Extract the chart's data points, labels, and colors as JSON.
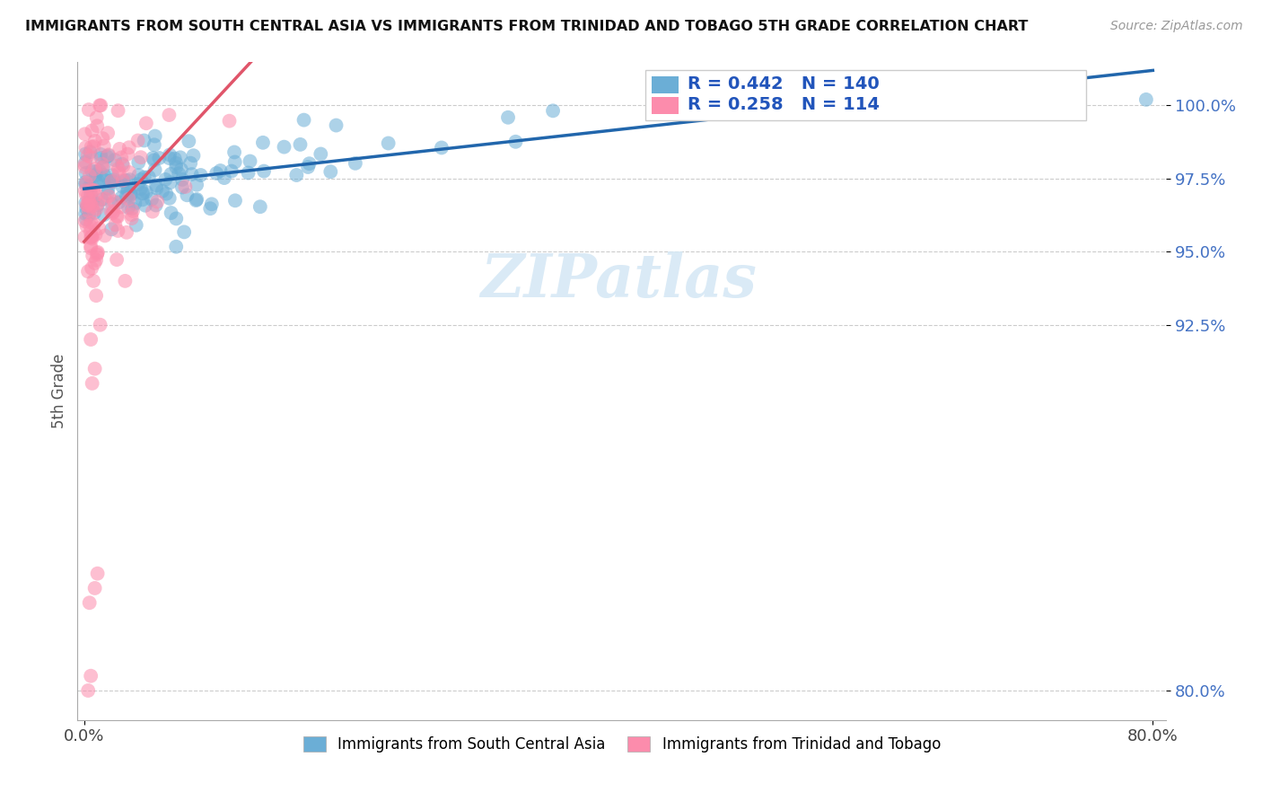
{
  "title": "IMMIGRANTS FROM SOUTH CENTRAL ASIA VS IMMIGRANTS FROM TRINIDAD AND TOBAGO 5TH GRADE CORRELATION CHART",
  "source": "Source: ZipAtlas.com",
  "ylabel": "5th Grade",
  "legend_label1": "Immigrants from South Central Asia",
  "legend_label2": "Immigrants from Trinidad and Tobago",
  "R1": 0.442,
  "N1": 140,
  "R2": 0.258,
  "N2": 114,
  "color1": "#6baed6",
  "color2": "#fc8cac",
  "trend_color1": "#2166ac",
  "trend_color2": "#e0556a",
  "xlim_min": -0.5,
  "xlim_max": 81,
  "ylim_min": 79.0,
  "ylim_max": 101.5,
  "ytick_vals": [
    80.0,
    92.5,
    95.0,
    97.5,
    100.0
  ],
  "xtick_vals": [
    0.0,
    80.0
  ],
  "background_color": "#ffffff",
  "watermark_text": "ZIPatlas",
  "watermark_color": "#d6e8f5",
  "title_fontsize": 11.5,
  "source_fontsize": 10,
  "tick_fontsize": 13,
  "ylabel_fontsize": 12
}
